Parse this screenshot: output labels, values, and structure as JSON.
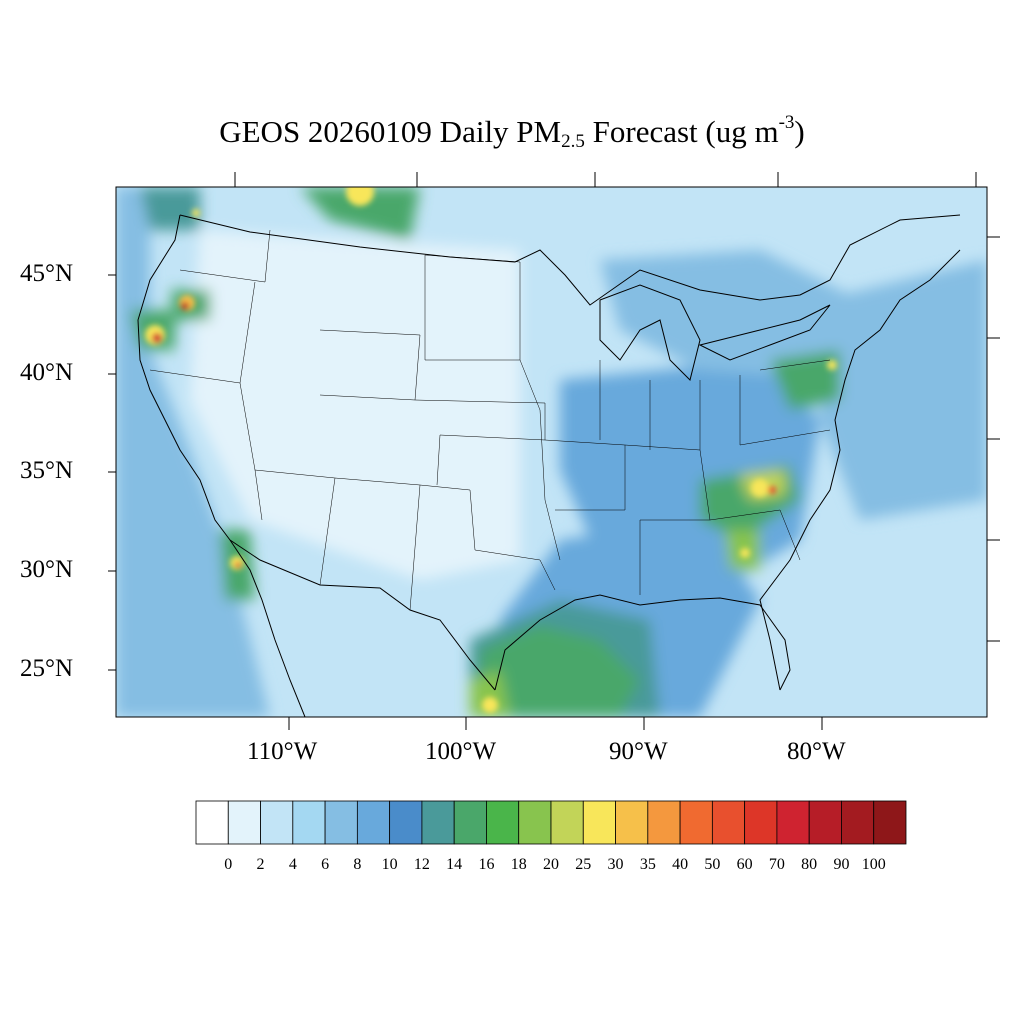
{
  "title": {
    "prefix": "GEOS 20260109 Daily PM",
    "subscript": "2.5",
    "middle": " Forecast (ug m",
    "superscript": "-3",
    "suffix": ")"
  },
  "map": {
    "region": "Contiguous United States",
    "lat_labels": [
      "45°N",
      "40°N",
      "35°N",
      "30°N",
      "25°N"
    ],
    "lon_labels": [
      "110°W",
      "100°W",
      "90°W",
      "80°W"
    ],
    "background_color": "#c2e4f6"
  },
  "colorbar": {
    "labels": [
      "0",
      "2",
      "4",
      "6",
      "8",
      "10",
      "12",
      "14",
      "16",
      "18",
      "20",
      "25",
      "30",
      "35",
      "40",
      "50",
      "60",
      "70",
      "80",
      "90",
      "100"
    ],
    "colors": [
      "#ffffff",
      "#e3f3fb",
      "#c2e4f6",
      "#a4d8f2",
      "#85bee3",
      "#68a9dc",
      "#4a8cca",
      "#4a9a9a",
      "#4aa76a",
      "#4ab54a",
      "#88c44e",
      "#c2d458",
      "#f8e65a",
      "#f6c04a",
      "#f4983e",
      "#f06a30",
      "#e8502e",
      "#dd3628",
      "#cf2330",
      "#b61d27",
      "#a31b20",
      "#8e1719"
    ]
  }
}
